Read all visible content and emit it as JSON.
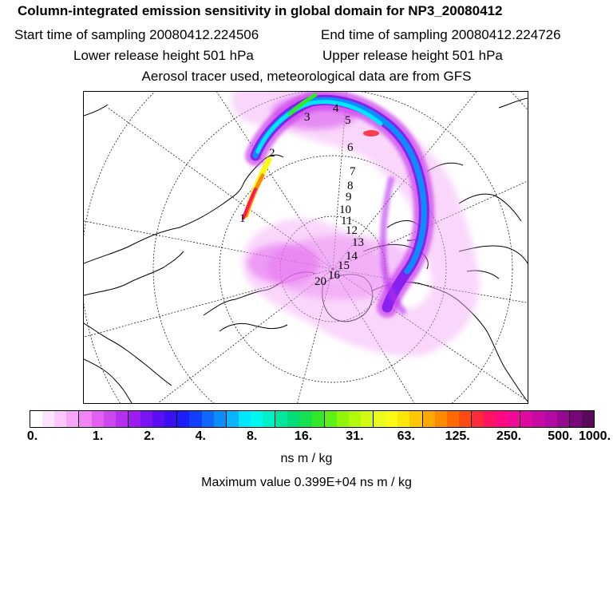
{
  "header": {
    "title": "Column-integrated emission sensitivity in global domain for NP3_20080412",
    "start_time": "Start time of sampling 20080412.224506",
    "end_time": "End time of sampling 20080412.224726",
    "lower_release": "Lower release height  501 hPa",
    "upper_release": "Upper release height  501 hPa",
    "tracer_info": "Aerosol tracer used, meteorological data are from GFS"
  },
  "map": {
    "trajectory_labels": [
      "1",
      "2",
      "3",
      "4",
      "5",
      "6",
      "7",
      "8",
      "9",
      "10",
      "11",
      "12",
      "13",
      "14",
      "15",
      "16",
      "20"
    ]
  },
  "colorbar": {
    "colors": [
      "#ffffff",
      "#fde4fd",
      "#fbc8fb",
      "#f7a6f7",
      "#f285f5",
      "#e45ef2",
      "#cc47ee",
      "#b82ef0",
      "#9d1cf2",
      "#7a14f0",
      "#5a0ff2",
      "#3a10f4",
      "#1c1df7",
      "#1240fa",
      "#0f68fb",
      "#0b8efb",
      "#0ab4fc",
      "#00e6ff",
      "#00f7f0",
      "#00f0c8",
      "#00e6a0",
      "#00dc78",
      "#14e050",
      "#32e828",
      "#5cf014",
      "#90f50a",
      "#b4f80a",
      "#d2fa14",
      "#eafc1e",
      "#fafa14",
      "#fde60a",
      "#ffc800",
      "#ffa800",
      "#ff8a00",
      "#ff6a00",
      "#ff4a14",
      "#ff2a3c",
      "#ff1464",
      "#ff0a82",
      "#f00a96",
      "#dc0aa0",
      "#c80aa5",
      "#b40aa5",
      "#960a91",
      "#78087a",
      "#5a0a5a"
    ],
    "tick_labels": [
      "0.",
      "1.",
      "2.",
      "4.",
      "8.",
      "16.",
      "31.",
      "63.",
      "125.",
      "250.",
      "500.",
      "1000."
    ],
    "units": "ns m / kg"
  },
  "max_value": "Maximum value  0.399E+04 ns m / kg"
}
